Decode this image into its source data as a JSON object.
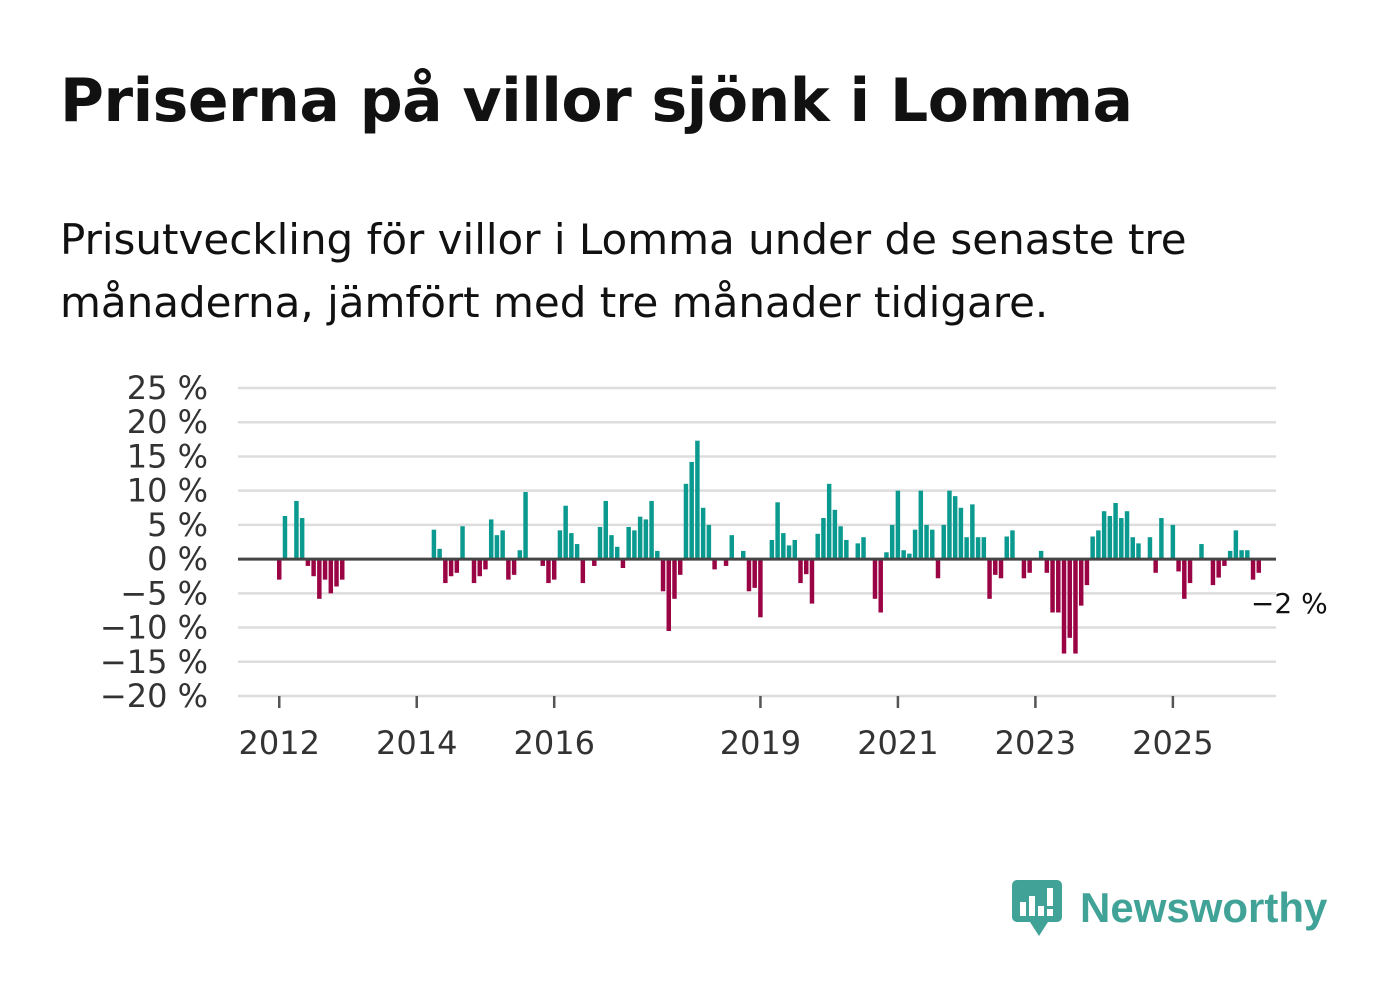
{
  "title": "Priserna på villor sjönk i Lomma",
  "subtitle": "Prisutveckling för villor i Lomma under de senaste tre månaderna, jämfört med tre månader tidigare.",
  "brand": {
    "name": "Newsworthy",
    "icon": "bar-chart-speech-bubble-icon"
  },
  "colors": {
    "positive": "#0b9a8f",
    "negative": "#9b0444",
    "grid": "#dddddd",
    "zero": "#444444",
    "brand": "#41a397"
  },
  "chart_data": {
    "type": "bar",
    "y_unit": "%",
    "ylim": [
      -20,
      25
    ],
    "yticks": [
      25,
      20,
      15,
      10,
      5,
      0,
      -5,
      -10,
      -15,
      -20
    ],
    "ytick_labels": [
      "25 %",
      "20 %",
      "15 %",
      "10 %",
      "5 %",
      "0 %",
      "−5 %",
      "−10 %",
      "−15 %",
      "−20 %"
    ],
    "xlim": [
      2011.4,
      2026.5
    ],
    "xticks": [
      2012,
      2014,
      2016,
      2019,
      2021,
      2023,
      2025
    ],
    "xtick_labels": [
      "2012",
      "2014",
      "2016",
      "2019",
      "2021",
      "2023",
      "2025"
    ],
    "series": [
      {
        "name": "Prisutveckling",
        "start": 2012.0,
        "step": 0.08333,
        "values": [
          -3,
          6.3,
          0,
          8.5,
          6,
          -1,
          -2.5,
          -5.8,
          -3,
          -5,
          -4,
          -3,
          0,
          0,
          0,
          0,
          0,
          0,
          0,
          0,
          0,
          0,
          0,
          0,
          0,
          0,
          0,
          4.3,
          1.5,
          -3.5,
          -2.5,
          -2,
          4.8,
          0,
          -3.5,
          -2.5,
          -1.5,
          5.8,
          3.5,
          4.2,
          -3,
          -2.3,
          1.3,
          9.8,
          0,
          0,
          -1,
          -3.5,
          -3,
          4.2,
          7.8,
          3.8,
          2.2,
          -3.5,
          0,
          -1,
          4.7,
          8.5,
          3.5,
          1.8,
          -1.3,
          4.7,
          4.2,
          6.2,
          5.8,
          8.5,
          1.2,
          -4.7,
          -10.5,
          -5.8,
          -2.3,
          11,
          14.2,
          17.3,
          7.5,
          5,
          -1.5,
          0,
          -1,
          3.5,
          0,
          1.2,
          -4.7,
          -4.2,
          -8.5,
          0,
          2.8,
          8.3,
          3.8,
          2,
          2.8,
          -3.5,
          -2.2,
          -6.5,
          3.7,
          6,
          11,
          7.2,
          4.8,
          2.8,
          0,
          2.3,
          3.2,
          0,
          -5.8,
          -7.8,
          1,
          5,
          10,
          1.3,
          0.8,
          4.3,
          10,
          5,
          4.3,
          -2.8,
          5,
          10,
          9.2,
          7.5,
          3.2,
          8,
          3.2,
          3.2,
          -5.8,
          -2.3,
          -2.8,
          3.3,
          4.2,
          0,
          -2.8,
          -2,
          0,
          1.2,
          -2,
          -7.8,
          -7.8,
          -13.8,
          -11.5,
          -13.8,
          -6.8,
          -3.8,
          3.3,
          4.2,
          7,
          6.3,
          8.2,
          6,
          7,
          3.2,
          2.3,
          0,
          3.2,
          -2,
          6,
          0,
          5,
          -1.8,
          -5.8,
          -3.5,
          0,
          2.2,
          0,
          -3.8,
          -2.7,
          -1,
          1.2,
          4.2,
          1.3,
          1.3,
          -3,
          -2
        ]
      }
    ],
    "annotations": [
      {
        "text": "−2 %",
        "x": 2026.17,
        "y": -2
      }
    ]
  }
}
